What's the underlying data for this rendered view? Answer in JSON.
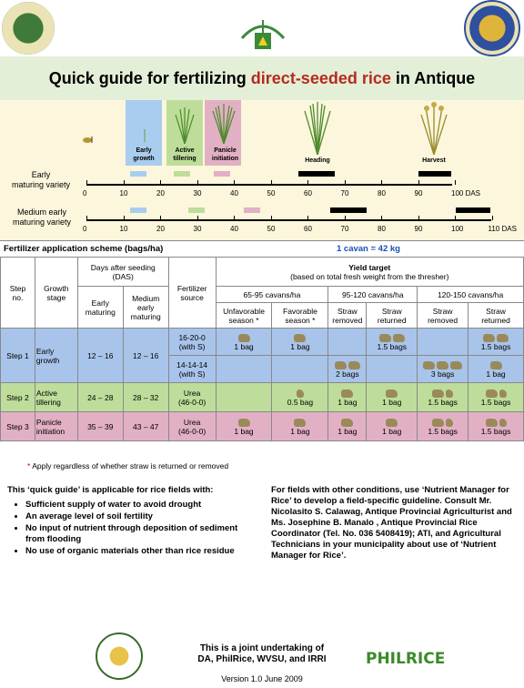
{
  "title": {
    "prefix": "Quick guide for fertilizing ",
    "highlight": "direct-seeded rice",
    "suffix": " in Antique"
  },
  "stages": [
    {
      "label": "Early\ngrowth",
      "color": "#a9cdef"
    },
    {
      "label": "Active\ntillering",
      "color": "#bedd9a"
    },
    {
      "label": "Panicle\ninitiation",
      "color": "#e2b0c4"
    },
    {
      "label": "Heading"
    },
    {
      "label": "Harvest"
    }
  ],
  "timeline": {
    "early_label": "Early\nmaturing variety",
    "medium_label": "Medium early\nmaturing variety",
    "early_ticks": [
      "0",
      "10",
      "20",
      "30",
      "40",
      "50",
      "60",
      "70",
      "80",
      "90",
      "100 DAS"
    ],
    "medium_ticks": [
      "0",
      "10",
      "20",
      "30",
      "40",
      "50",
      "60",
      "70",
      "80",
      "90",
      "100",
      "110 DAS"
    ]
  },
  "scheme": {
    "title": "Fertilizer application scheme (bags/ha)",
    "cavan": "1 cavan = 42 kg"
  },
  "table": {
    "h_step": "Step\nno.",
    "h_growth": "Growth\nstage",
    "h_das": "Days after seeding\n(DAS)",
    "h_early": "Early\nmaturing",
    "h_medium": "Medium\nearly\nmaturing",
    "h_source": "Fertilizer\nsource",
    "h_yield": "Yield target",
    "h_yield_sub": "(based on total fresh weight from the thresher)",
    "h_y1": "65-95 cavans/ha",
    "h_y2": "95-120 cavans/ha",
    "h_y3": "120-150 cavans/ha",
    "h_unfav": "Unfavorable\nseason *",
    "h_fav": "Favorable\nseason *",
    "h_straw_removed": "Straw\nremoved",
    "h_straw_returned": "Straw\nreturned",
    "step1": "Step 1",
    "step1_stage": "Early\ngrowth",
    "step1_early": "12 – 16",
    "step1_medium": "12 – 16",
    "src_1620": "16-20-0\n(with S)",
    "src_1414": "14-14-14\n(with S)",
    "r1_unfav": "1 bag",
    "r1_fav": "1 bag",
    "r1_y2_ret": "1.5 bags",
    "r1_y3_ret": "1.5 bags",
    "r2_y2_rem": "2 bags",
    "r2_y3_rem": "3 bags",
    "r2_y3_ret": "1 bag",
    "step2": "Step 2",
    "step2_stage": "Active\ntillering",
    "step2_early": "24 – 28",
    "step2_medium": "28 – 32",
    "src_urea": "Urea\n(46-0-0)",
    "s2_fav": "0.5 bag",
    "s2_y2_rem": "1 bag",
    "s2_y2_ret": "1 bag",
    "s2_y3_rem": "1.5 bags",
    "s2_y3_ret": "1.5 bags",
    "step3": "Step 3",
    "step3_stage": "Panicle\ninitiation",
    "step3_early": "35 – 39",
    "step3_medium": "43 – 47",
    "s3_unfav": "1 bag",
    "s3_fav": "1 bag",
    "s3_y2_rem": "1 bag",
    "s3_y2_ret": "1 bag",
    "s3_y3_rem": "1.5 bags",
    "s3_y3_ret": "1.5 bags"
  },
  "footnote": {
    "star": "*",
    "text": " Apply regardless of whether straw is returned or removed"
  },
  "applicable": {
    "intro": "This ‘quick guide’ is applicable for rice fields with:",
    "items": [
      "Sufficient supply of water to avoid drought",
      "An average level of soil fertility",
      "No input of nutrient through deposition of sediment from flooding",
      "No use of organic materials other than rice residue"
    ]
  },
  "other": "For fields with other conditions, use ‘Nutrient Manager for Rice’ to develop a field-specific guideline. Consult Mr. Nicolasito S. Calawag, Antique Provincial Agriculturist and Ms. Josephine B. Manalo , Antique Provincial Rice Coordinator (Tel. No. 036 5408419); ATI, and Agricultural Technicians in your municipality about use of ‘Nutrient Manager for Rice’.",
  "joint": "This is a joint undertaking of\nDA, PhilRice, WVSU, and IRRI",
  "version": "Version 1.0 June 2009",
  "logos": {
    "philrice": "PHILRICE",
    "left_seal": "PROVINCE OF ANTIQUE",
    "right_seal": "WEST VISAYAS STATE UNIVERSITY"
  }
}
